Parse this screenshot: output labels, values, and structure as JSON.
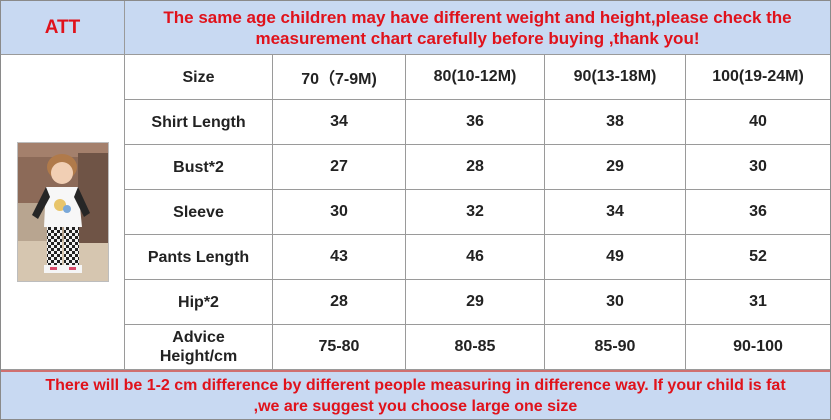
{
  "header": {
    "att_label": "ATT",
    "notice_line1": "The same age children may have different weight and height,please check the",
    "notice_line2": "measurement chart carefully before buying ,thank you!"
  },
  "table": {
    "columns": [
      "Size",
      "70（7-9M)",
      "80(10-12M)",
      "90(13-18M)",
      "100(19-24M)"
    ],
    "rows": [
      {
        "label": "Shirt Length",
        "values": [
          "34",
          "36",
          "38",
          "40"
        ]
      },
      {
        "label": "Bust*2",
        "values": [
          "27",
          "28",
          "29",
          "30"
        ]
      },
      {
        "label": "Sleeve",
        "values": [
          "30",
          "32",
          "34",
          "36"
        ]
      },
      {
        "label": "Pants Length",
        "values": [
          "43",
          "46",
          "49",
          "52"
        ]
      },
      {
        "label": "Hip*2",
        "values": [
          "28",
          "29",
          "30",
          "31"
        ]
      },
      {
        "label_line1": "Advice",
        "label_line2": "Height/cm",
        "values": [
          "75-80",
          "80-85",
          "85-90",
          "90-100"
        ]
      }
    ]
  },
  "footer": {
    "line1": "There will be 1-2 cm difference by different people measuring in difference way. If your child is fat",
    "line2": ",we are suggest you choose large one size"
  },
  "photo": {
    "subject": "toddler wearing raglan t-shirt and checkered pants"
  },
  "colors": {
    "accent_red": "#e0121b",
    "header_blue": "#c8d9f2",
    "grid": "#9a9a9a"
  }
}
